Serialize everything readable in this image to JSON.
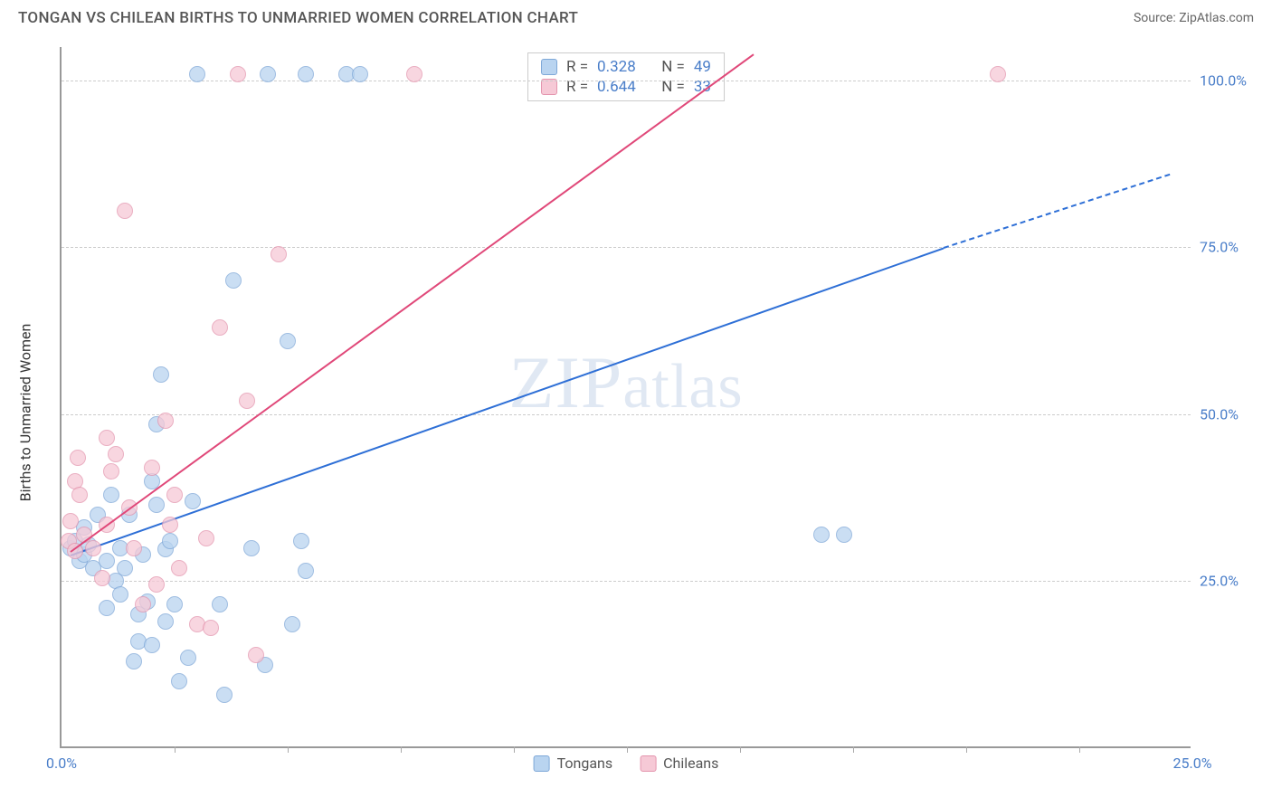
{
  "header": {
    "title": "TONGAN VS CHILEAN BIRTHS TO UNMARRIED WOMEN CORRELATION CHART",
    "source": "Source: ZipAtlas.com"
  },
  "chart": {
    "type": "scatter",
    "ylabel": "Births to Unmarried Women",
    "watermark": "ZIPatlas",
    "xlim": [
      0,
      25
    ],
    "ylim": [
      0,
      105
    ],
    "y_ticks": [
      {
        "v": 25,
        "label": "25.0%"
      },
      {
        "v": 50,
        "label": "50.0%"
      },
      {
        "v": 75,
        "label": "75.0%"
      },
      {
        "v": 100,
        "label": "100.0%"
      }
    ],
    "x_ticks": [
      {
        "v": 0,
        "label": "0.0%"
      },
      {
        "v": 25,
        "label": "25.0%"
      }
    ],
    "x_minor_step": 2.5,
    "background_color": "#ffffff",
    "grid_color": "#cccccc",
    "axis_color": "#999999",
    "series": [
      {
        "name": "tongans",
        "label": "Tongans",
        "fill": "#b9d4f0",
        "stroke": "#7fa8d8",
        "line_color": "#2e6fd6",
        "marker_r": 9,
        "R": "0.328",
        "N": "49",
        "trend": {
          "x1": 0.2,
          "y1": 29,
          "x2": 19.5,
          "y2": 75,
          "dash_from_x": 19.5,
          "x3": 24.5,
          "y3": 86
        },
        "points": [
          [
            0.2,
            30
          ],
          [
            0.3,
            31
          ],
          [
            0.4,
            28
          ],
          [
            0.5,
            29
          ],
          [
            0.6,
            30.5
          ],
          [
            0.5,
            33
          ],
          [
            0.7,
            27
          ],
          [
            0.8,
            35
          ],
          [
            1.0,
            21
          ],
          [
            1.0,
            28
          ],
          [
            1.2,
            25
          ],
          [
            1.1,
            38
          ],
          [
            1.3,
            23
          ],
          [
            1.3,
            30
          ],
          [
            1.4,
            27
          ],
          [
            1.5,
            35
          ],
          [
            1.6,
            13
          ],
          [
            1.7,
            16
          ],
          [
            1.7,
            20
          ],
          [
            1.8,
            29
          ],
          [
            1.9,
            22
          ],
          [
            2.0,
            15.5
          ],
          [
            2.0,
            40
          ],
          [
            2.1,
            36.5
          ],
          [
            2.1,
            48.5
          ],
          [
            2.2,
            56
          ],
          [
            2.3,
            19
          ],
          [
            2.3,
            29.8
          ],
          [
            2.4,
            31
          ],
          [
            2.5,
            21.5
          ],
          [
            2.6,
            10
          ],
          [
            2.8,
            13.5
          ],
          [
            2.9,
            37
          ],
          [
            3.0,
            101
          ],
          [
            3.5,
            21.5
          ],
          [
            3.6,
            8
          ],
          [
            3.8,
            70
          ],
          [
            4.2,
            30
          ],
          [
            4.5,
            12.5
          ],
          [
            4.55,
            101
          ],
          [
            5.0,
            61
          ],
          [
            5.1,
            18.5
          ],
          [
            5.3,
            31
          ],
          [
            5.4,
            26.5
          ],
          [
            5.4,
            101
          ],
          [
            6.3,
            101
          ],
          [
            6.6,
            101
          ],
          [
            16.8,
            32
          ],
          [
            17.3,
            32
          ]
        ]
      },
      {
        "name": "chileans",
        "label": "Chileans",
        "fill": "#f6c9d6",
        "stroke": "#e495ae",
        "line_color": "#e04879",
        "marker_r": 9,
        "R": "0.644",
        "N": "33",
        "trend": {
          "x1": 0.2,
          "y1": 29.5,
          "x2": 15.3,
          "y2": 104
        },
        "points": [
          [
            0.15,
            31
          ],
          [
            0.2,
            34
          ],
          [
            0.3,
            40
          ],
          [
            0.3,
            29.5
          ],
          [
            0.35,
            43.5
          ],
          [
            0.4,
            38
          ],
          [
            0.5,
            32
          ],
          [
            0.7,
            30
          ],
          [
            0.9,
            25.5
          ],
          [
            1.0,
            46.5
          ],
          [
            1.0,
            33.5
          ],
          [
            1.1,
            41.5
          ],
          [
            1.2,
            44
          ],
          [
            1.4,
            80.5
          ],
          [
            1.5,
            36
          ],
          [
            1.6,
            30
          ],
          [
            1.8,
            21.5
          ],
          [
            2.0,
            42
          ],
          [
            2.1,
            24.5
          ],
          [
            2.3,
            49
          ],
          [
            2.4,
            33.5
          ],
          [
            2.5,
            38
          ],
          [
            2.6,
            27
          ],
          [
            3.0,
            18.5
          ],
          [
            3.2,
            31.5
          ],
          [
            3.3,
            18
          ],
          [
            3.5,
            63
          ],
          [
            3.9,
            101
          ],
          [
            4.1,
            52
          ],
          [
            4.3,
            14
          ],
          [
            4.8,
            74
          ],
          [
            7.8,
            101
          ],
          [
            20.7,
            101
          ]
        ]
      }
    ]
  }
}
